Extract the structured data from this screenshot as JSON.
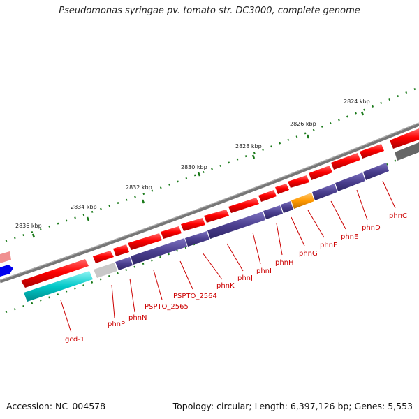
{
  "title": "Pseudomonas syringae pv. tomato str. DC3000, complete genome",
  "footer": {
    "accession": "Accession: NC_004578",
    "summary": "Topology: circular; Length: 6,397,126 bp; Genes: 5,553"
  },
  "colors": {
    "forward_gene": "#ff0000",
    "reverse_gene": "#ff0000",
    "operon_band": "#4b3f8f",
    "phnG": "#ff9900",
    "gcd_1": "#00c8c8",
    "backbone": "#777777",
    "tick": "#1a7a1a",
    "label": "#cc0000"
  },
  "scale_labels": [
    "2824 kbp",
    "2826 kbp",
    "2828 kbp",
    "2830 kbp",
    "2832 kbp",
    "2834 kbp",
    "2836 kbp"
  ],
  "genes": [
    {
      "id": "phnC",
      "label": "phnC"
    },
    {
      "id": "phnD",
      "label": "phnD"
    },
    {
      "id": "phnE",
      "label": "phnE"
    },
    {
      "id": "phnF",
      "label": "phnF"
    },
    {
      "id": "phnG",
      "label": "phnG"
    },
    {
      "id": "phnH",
      "label": "phnH"
    },
    {
      "id": "phnI",
      "label": "phnI"
    },
    {
      "id": "phnJ",
      "label": "phnJ"
    },
    {
      "id": "phnK",
      "label": "phnK"
    },
    {
      "id": "PSPTO_2564",
      "label": "PSPTO_2564"
    },
    {
      "id": "PSPTO_2565",
      "label": "PSPTO_2565"
    },
    {
      "id": "phnN",
      "label": "phnN"
    },
    {
      "id": "phnP",
      "label": "phnP"
    },
    {
      "id": "gcd-1",
      "label": "gcd-1"
    }
  ]
}
